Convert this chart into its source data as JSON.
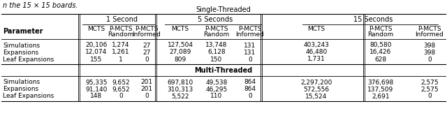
{
  "title_top": "n the 15 × 15 boards.",
  "section_single": "Single-Threaded",
  "section_multi": "Multi-Threaded",
  "time_headers": [
    "1 Second",
    "5 Seconds",
    "15 Seconds"
  ],
  "sub_labels": [
    "MCTS",
    "P-MCTS\nRandom",
    "P-MCTS\nInformed"
  ],
  "row_labels": [
    "Simulations",
    "Expansions",
    "Leaf Expansions"
  ],
  "single_data": [
    [
      "20,106",
      "1,274",
      "27",
      "127,504",
      "13,748",
      "131",
      "403,243",
      "80,580",
      "398"
    ],
    [
      "12,074",
      "1,261",
      "27",
      "27,089",
      "6,128",
      "131",
      "46,480",
      "16,426",
      "398"
    ],
    [
      "155",
      "1",
      "0",
      "809",
      "150",
      "0",
      "1,731",
      "628",
      "0"
    ]
  ],
  "multi_data": [
    [
      "95,335",
      "9,652",
      "201",
      "697,810",
      "49,538",
      "864",
      "2,297,200",
      "376,698",
      "2,575"
    ],
    [
      "91,140",
      "9,652",
      "201",
      "310,313",
      "46,295",
      "864",
      "572,556",
      "137,509",
      "2,575"
    ],
    [
      "148",
      "0",
      "0",
      "5,522",
      "110",
      "0",
      "15,524",
      "2,691",
      "0"
    ]
  ],
  "bg_color": "#ffffff",
  "text_color": "#000000",
  "fs_title": 7.0,
  "fs_header": 7.0,
  "fs_data": 6.5
}
